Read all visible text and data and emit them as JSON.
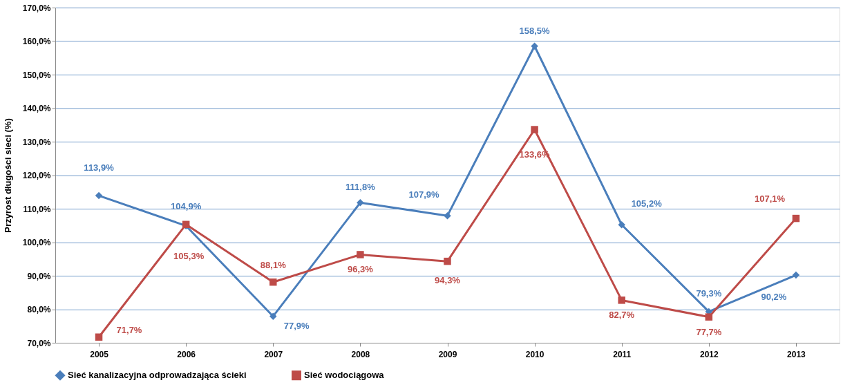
{
  "chart_data": {
    "type": "line",
    "ylabel": "Przyrost długości sieci (%)",
    "categories": [
      "2005",
      "2006",
      "2007",
      "2008",
      "2009",
      "2010",
      "2011",
      "2012",
      "2013"
    ],
    "series": [
      {
        "name": "Sieć kanalizacyjna odprowadzająca ścieki",
        "color": "#4a7ebb",
        "marker": "diamond",
        "values": [
          113.9,
          104.9,
          77.9,
          111.8,
          107.9,
          158.5,
          105.2,
          79.3,
          90.2
        ],
        "value_labels": [
          "113,9%",
          "104,9%",
          "77,9%",
          "111,8%",
          "107,9%",
          "158,5%",
          "105,2%",
          "79,3%",
          "90,2%"
        ]
      },
      {
        "name": "Sieć wodociągowa",
        "color": "#be4b48",
        "marker": "square",
        "values": [
          71.7,
          105.3,
          88.1,
          96.3,
          94.3,
          133.6,
          82.7,
          77.7,
          107.1
        ],
        "value_labels": [
          "71,7%",
          "105,3%",
          "88,1%",
          "96,3%",
          "94,3%",
          "133,6%",
          "82,7%",
          "77,7%",
          "107,1%"
        ]
      }
    ],
    "ylim": [
      70,
      170
    ],
    "yticks": [
      {
        "value": 70,
        "label": "70,0%"
      },
      {
        "value": 80,
        "label": "80,0%"
      },
      {
        "value": 90,
        "label": "90,0%"
      },
      {
        "value": 100,
        "label": "100,0%"
      },
      {
        "value": 110,
        "label": "110,0%"
      },
      {
        "value": 120,
        "label": "120,0%"
      },
      {
        "value": 130,
        "label": "130,0%"
      },
      {
        "value": 140,
        "label": "140,0%"
      },
      {
        "value": 150,
        "label": "150,0%"
      },
      {
        "value": 160,
        "label": "160,0%"
      },
      {
        "value": 170,
        "label": "170,0%"
      }
    ],
    "grid": "y",
    "legend": "bottom",
    "line_style": "solid"
  }
}
